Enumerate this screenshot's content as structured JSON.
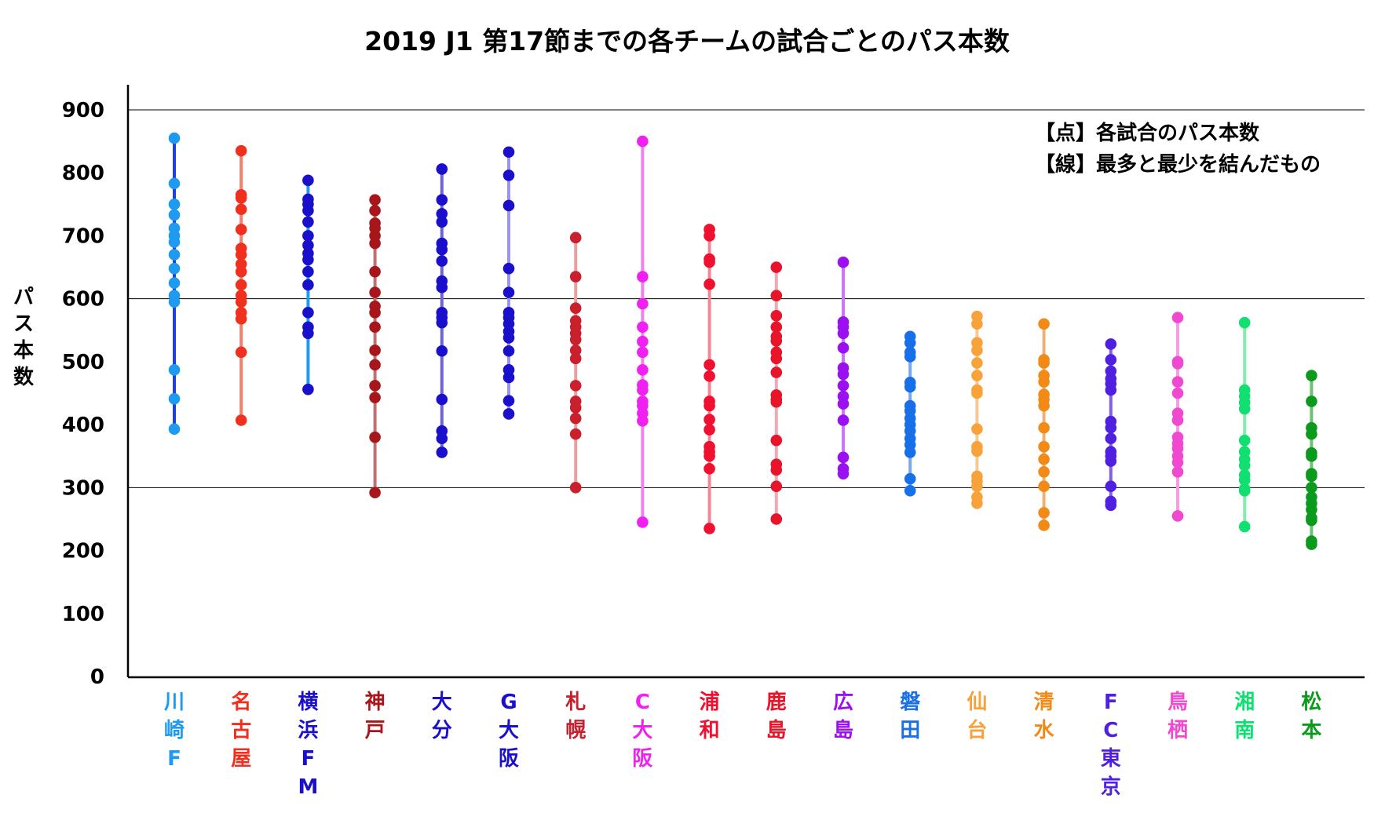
{
  "chart_data": {
    "type": "scatter",
    "title": "2019 J1 第17節までの各チームの試合ごとのパス本数",
    "xlabel": "",
    "ylabel": "パス本数",
    "ylim": [
      0,
      950
    ],
    "yticks": [
      0,
      100,
      200,
      300,
      400,
      500,
      600,
      700,
      800,
      900
    ],
    "yticks_labels": [
      "0",
      "100",
      "200",
      "300",
      "400",
      "500",
      "600",
      "700",
      "800",
      "900"
    ],
    "grid": "horizontal at 300, 600, 900",
    "legend": {
      "placement": "top-right",
      "entries": [
        "【点】各試合のパス本数",
        "【線】最多と最少を結んだもの"
      ]
    },
    "teams": [
      {
        "name": "川崎F",
        "color": "#1E9BF0",
        "line_color": "#1F3FE0",
        "values": [
          855,
          783,
          750,
          733,
          712,
          700,
          690,
          670,
          648,
          625,
          605,
          595,
          487,
          441,
          393
        ]
      },
      {
        "name": "名古屋",
        "color": "#F0301E",
        "line_color": "#F28070",
        "values": [
          835,
          765,
          760,
          742,
          710,
          680,
          670,
          655,
          643,
          622,
          605,
          595,
          578,
          568,
          515,
          407
        ]
      },
      {
        "name": "横浜FM",
        "color": "#1A10CC",
        "line_color": "#1E9BF0",
        "values": [
          788,
          758,
          750,
          740,
          722,
          700,
          685,
          672,
          662,
          643,
          622,
          578,
          555,
          545,
          456
        ]
      },
      {
        "name": "神戸",
        "color": "#A8161B",
        "line_color": "#C07070",
        "values": [
          757,
          740,
          720,
          712,
          700,
          688,
          643,
          610,
          588,
          578,
          555,
          518,
          495,
          462,
          443,
          380,
          292
        ]
      },
      {
        "name": "大分",
        "color": "#1A10CC",
        "line_color": "#6E64D8",
        "values": [
          806,
          757,
          735,
          722,
          688,
          678,
          660,
          628,
          618,
          578,
          570,
          562,
          517,
          440,
          390,
          378,
          356
        ]
      },
      {
        "name": "G大阪",
        "color": "#1A10CC",
        "line_color": "#9A96EE",
        "values": [
          833,
          796,
          748,
          648,
          610,
          578,
          570,
          560,
          548,
          538,
          517,
          487,
          475,
          438,
          417
        ]
      },
      {
        "name": "札幌",
        "color": "#C8202C",
        "line_color": "#EBA0A0",
        "values": [
          697,
          635,
          585,
          565,
          555,
          545,
          535,
          518,
          505,
          462,
          437,
          427,
          410,
          385,
          300
        ]
      },
      {
        "name": "C大阪",
        "color": "#F021F0",
        "line_color": "#F080F0",
        "values": [
          850,
          635,
          592,
          555,
          532,
          515,
          487,
          463,
          455,
          437,
          430,
          418,
          406,
          245
        ]
      },
      {
        "name": "浦和",
        "color": "#F01030",
        "line_color": "#F08898",
        "values": [
          710,
          700,
          663,
          658,
          623,
          495,
          477,
          437,
          430,
          408,
          392,
          365,
          357,
          350,
          330,
          235
        ]
      },
      {
        "name": "鹿島",
        "color": "#E8142A",
        "line_color": "#F2A8B0",
        "values": [
          650,
          605,
          573,
          555,
          540,
          533,
          515,
          505,
          483,
          447,
          440,
          436,
          375,
          337,
          328,
          302,
          250
        ]
      },
      {
        "name": "広島",
        "color": "#9A10F0",
        "line_color": "#C878F2",
        "values": [
          658,
          563,
          555,
          545,
          522,
          490,
          480,
          462,
          445,
          433,
          407,
          348,
          330,
          322
        ]
      },
      {
        "name": "磐田",
        "color": "#1870E8",
        "line_color": "#78A8F2",
        "values": [
          540,
          530,
          515,
          508,
          467,
          460,
          430,
          422,
          410,
          400,
          390,
          378,
          368,
          356,
          314,
          295
        ]
      },
      {
        "name": "仙台",
        "color": "#F8A23C",
        "line_color": "#F8C890",
        "values": [
          572,
          560,
          530,
          518,
          498,
          478,
          455,
          450,
          393,
          365,
          358,
          318,
          310,
          302,
          285,
          275
        ]
      },
      {
        "name": "清水",
        "color": "#F28A18",
        "line_color": "#F2B070",
        "values": [
          560,
          503,
          498,
          478,
          468,
          448,
          440,
          430,
          395,
          365,
          345,
          325,
          302,
          260,
          240
        ]
      },
      {
        "name": "FC東京",
        "color": "#5020E0",
        "line_color": "#8060EA",
        "values": [
          528,
          503,
          485,
          473,
          465,
          455,
          405,
          395,
          378,
          357,
          350,
          342,
          302,
          278,
          272
        ]
      },
      {
        "name": "鳥栖",
        "color": "#F048D0",
        "line_color": "#F0A0E0",
        "values": [
          570,
          500,
          497,
          468,
          450,
          418,
          407,
          380,
          370,
          362,
          350,
          340,
          325,
          255
        ]
      },
      {
        "name": "湘南",
        "color": "#10E070",
        "line_color": "#80EEA8",
        "values": [
          562,
          455,
          445,
          435,
          425,
          375,
          357,
          345,
          335,
          320,
          312,
          298,
          295,
          238
        ]
      },
      {
        "name": "松本",
        "color": "#0C9A1C",
        "line_color": "#70C078",
        "values": [
          478,
          437,
          395,
          385,
          355,
          350,
          322,
          318,
          300,
          285,
          275,
          265,
          252,
          248,
          215,
          210
        ]
      }
    ]
  }
}
